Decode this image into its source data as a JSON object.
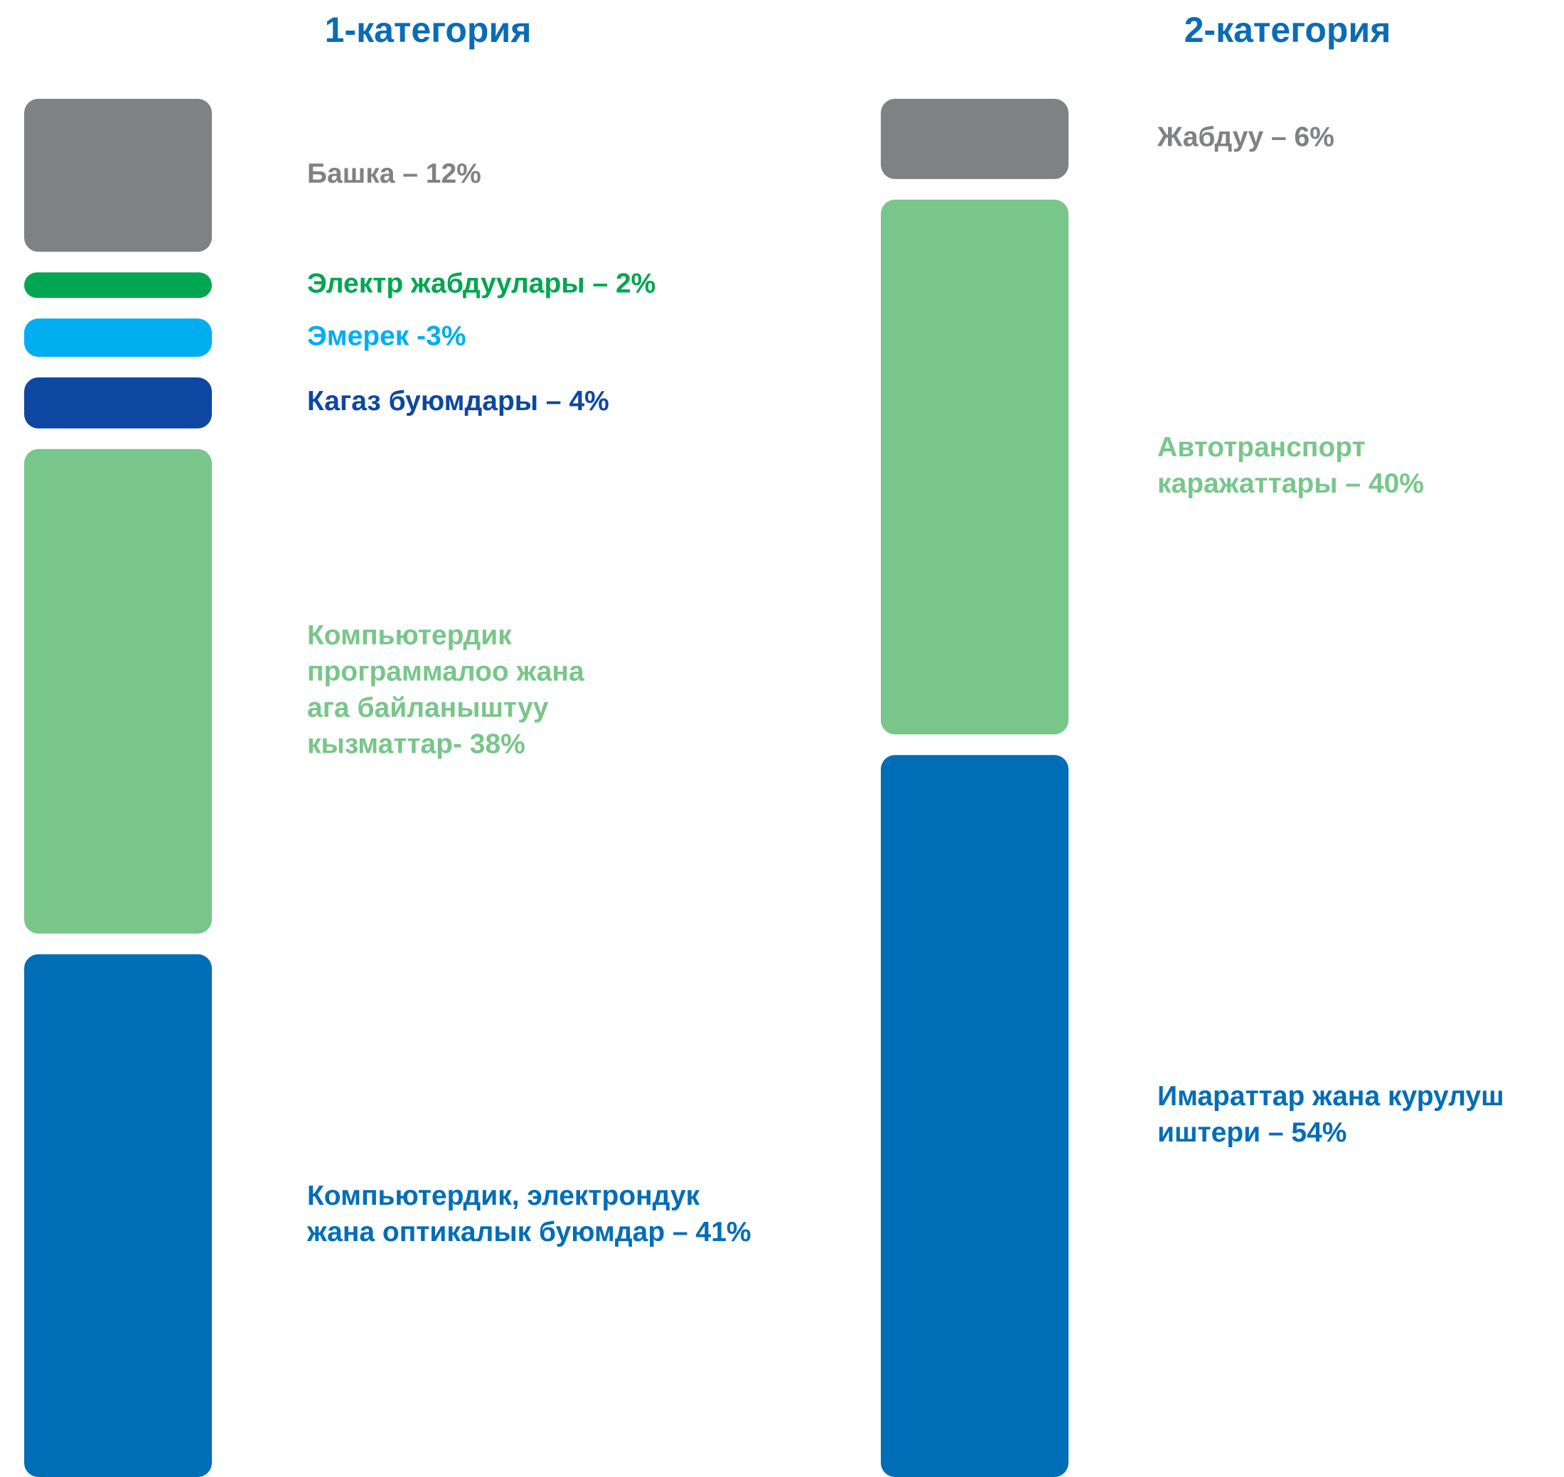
{
  "chart_data": [
    {
      "type": "segments",
      "title": "1-категория",
      "categories": [
        [
          "Башка – 12%"
        ],
        [
          "Электр жабдуулары – 2%"
        ],
        [
          "Эмерек -3%"
        ],
        [
          "Кагаз буюмдары – 4%"
        ],
        [
          "Компьютердик",
          "программалоо жана",
          "ага байланыштуу",
          "кызматтар- 38%"
        ],
        [
          "Компьютердик, электрондук",
          "жана оптикалык буюмдар – 41%"
        ]
      ],
      "values": [
        12,
        2,
        3,
        4,
        38,
        41
      ],
      "colors": [
        "#808184",
        "#00a651",
        "#00aeef",
        "#0d47a1",
        "#78c68a",
        "#006db7"
      ]
    },
    {
      "type": "segments",
      "title": "2-категория",
      "categories": [
        [
          "Жабдуу – 6%"
        ],
        [
          "Автотранспорт",
          "каражаттары – 40%"
        ],
        [
          "Имараттар жана курулуш",
          "иштери – 54%"
        ]
      ],
      "values": [
        6,
        40,
        54
      ],
      "colors": [
        "#808184",
        "#78c68a",
        "#006db7"
      ]
    }
  ]
}
